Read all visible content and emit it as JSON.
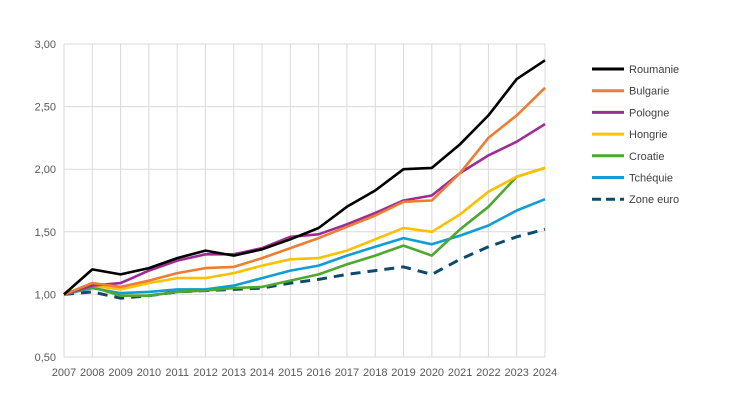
{
  "chart_data": {
    "type": "line",
    "title": "",
    "xlabel": "",
    "ylabel": "",
    "x": [
      2007,
      2008,
      2009,
      2010,
      2011,
      2012,
      2013,
      2014,
      2015,
      2016,
      2017,
      2018,
      2019,
      2020,
      2021,
      2022,
      2023,
      2024
    ],
    "x_tick_labels": [
      "2007",
      "2008",
      "2009",
      "2010",
      "2011",
      "2012",
      "2013",
      "2014",
      "2015",
      "2016",
      "2017",
      "2018",
      "2019",
      "2020",
      "2021",
      "2022",
      "2023",
      "2024"
    ],
    "ylim": [
      0.5,
      3.0
    ],
    "y_ticks": [
      0.5,
      1.0,
      1.5,
      2.0,
      2.5,
      3.0
    ],
    "y_tick_labels": [
      "0,50",
      "1,00",
      "1,50",
      "2,00",
      "2,50",
      "3,00"
    ],
    "grid": true,
    "legend_position": "right",
    "series": [
      {
        "name": "Roumanie",
        "color": "#000000",
        "dashed": false,
        "values": [
          1.0,
          1.2,
          1.16,
          1.21,
          1.29,
          1.35,
          1.31,
          1.36,
          1.44,
          1.53,
          1.7,
          1.83,
          2.0,
          2.01,
          2.2,
          2.43,
          2.72,
          2.87
        ]
      },
      {
        "name": "Bulgarie",
        "color": "#ed7d31",
        "dashed": false,
        "values": [
          1.0,
          1.09,
          1.06,
          1.11,
          1.17,
          1.21,
          1.22,
          1.29,
          1.37,
          1.45,
          1.54,
          1.63,
          1.74,
          1.75,
          1.97,
          2.25,
          2.43,
          2.65
        ]
      },
      {
        "name": "Pologne",
        "color": "#a02b93",
        "dashed": false,
        "values": [
          1.0,
          1.07,
          1.09,
          1.19,
          1.27,
          1.32,
          1.32,
          1.37,
          1.46,
          1.48,
          1.56,
          1.65,
          1.75,
          1.79,
          1.97,
          2.11,
          2.22,
          2.36
        ]
      },
      {
        "name": "Hongrie",
        "color": "#ffc000",
        "dashed": false,
        "values": [
          1.0,
          1.07,
          1.04,
          1.09,
          1.13,
          1.13,
          1.17,
          1.23,
          1.28,
          1.29,
          1.35,
          1.44,
          1.53,
          1.5,
          1.64,
          1.82,
          1.94,
          2.01
        ]
      },
      {
        "name": "Croatie",
        "color": "#4ea72e",
        "dashed": false,
        "values": [
          1.0,
          1.06,
          0.99,
          0.99,
          1.02,
          1.03,
          1.05,
          1.06,
          1.11,
          1.16,
          1.24,
          1.31,
          1.39,
          1.31,
          1.52,
          1.7,
          1.94,
          2.01
        ]
      },
      {
        "name": "Tchéquie",
        "color": "#0f9ed5",
        "dashed": false,
        "values": [
          1.0,
          1.05,
          1.01,
          1.02,
          1.04,
          1.04,
          1.07,
          1.13,
          1.19,
          1.23,
          1.31,
          1.38,
          1.45,
          1.4,
          1.47,
          1.55,
          1.67,
          1.76
        ]
      },
      {
        "name": "Zone euro",
        "color": "#0e4a6b",
        "dashed": true,
        "values": [
          1.0,
          1.02,
          0.97,
          0.99,
          1.02,
          1.03,
          1.04,
          1.05,
          1.09,
          1.12,
          1.16,
          1.19,
          1.22,
          1.16,
          1.28,
          1.38,
          1.46,
          1.52
        ]
      }
    ]
  }
}
